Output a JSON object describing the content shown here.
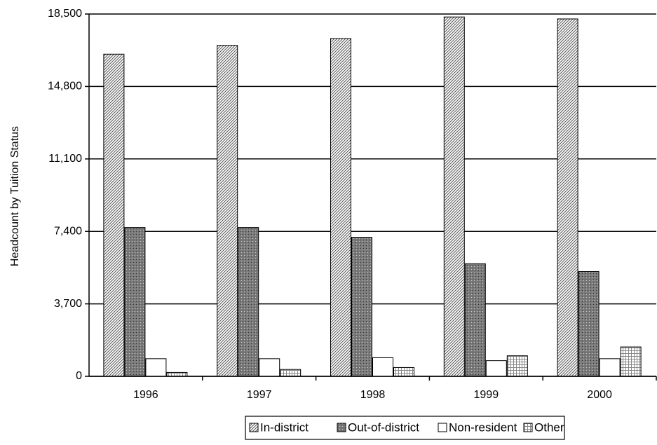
{
  "chart_data": {
    "type": "bar",
    "y_label": "Headcount by Tuition Status",
    "categories": [
      "1996",
      "1997",
      "1998",
      "1999",
      "2000"
    ],
    "series": [
      {
        "name": "In-district",
        "color": "#555555",
        "pattern": "diagonal",
        "values": [
          16450,
          16900,
          17250,
          18350,
          18250
        ]
      },
      {
        "name": "Out-of-district",
        "color": "#7a7a7a",
        "pattern": "dots",
        "values": [
          7600,
          7600,
          7100,
          5750,
          5350
        ]
      },
      {
        "name": "Non-resident",
        "color": "#ffffff",
        "pattern": "none",
        "values": [
          900,
          900,
          950,
          800,
          900
        ]
      },
      {
        "name": "Other",
        "color": "#888888",
        "pattern": "grid",
        "values": [
          200,
          350,
          450,
          1050,
          1500
        ]
      }
    ],
    "ylim": [
      0,
      18500
    ],
    "yticks": [
      0,
      {
        "value": 3700,
        "label": "3,700"
      },
      {
        "value": 7400,
        "label": "7,400"
      },
      {
        "value": 11100,
        "label": "11,100"
      },
      {
        "value": 14800,
        "label": "14,800"
      },
      {
        "value": 18500,
        "label": "18,500"
      }
    ],
    "grid": true,
    "legend": "bottom"
  }
}
